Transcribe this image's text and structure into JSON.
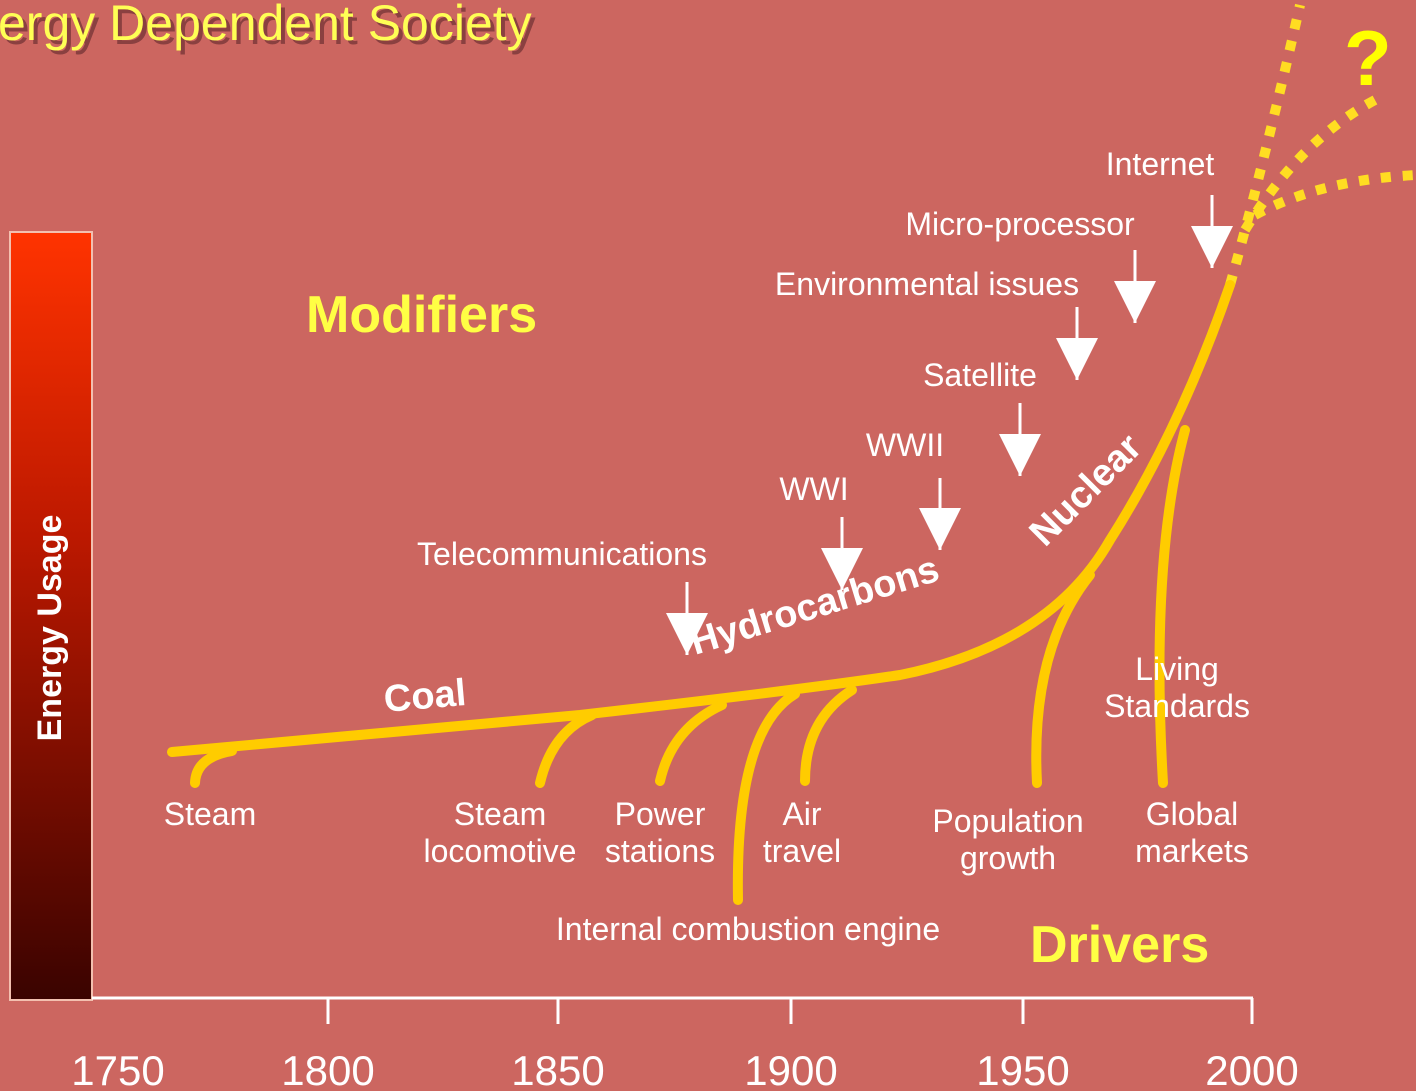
{
  "title": "ergy Dependent Society",
  "axis_label": "Energy Usage",
  "modifiers_heading": "Modifiers",
  "drivers_heading": "Drivers",
  "question": "?",
  "fuels": [
    "Coal",
    "Hydrocarbons",
    "Nuclear"
  ],
  "modifiers": [
    "Telecommunications",
    "WWI",
    "WWII",
    "Satellite",
    "Environmental issues",
    "Micro-processor",
    "Internet"
  ],
  "drivers": [
    "Steam",
    "Steam\nlocomotive",
    "Power\nstations",
    "Internal combustion engine",
    "Air\ntravel",
    "Population\ngrowth",
    "Living\nStandards",
    "Global\nmarkets"
  ],
  "x_axis_ticks": [
    "1750",
    "1800",
    "1850",
    "1900",
    "1950",
    "2000"
  ]
}
